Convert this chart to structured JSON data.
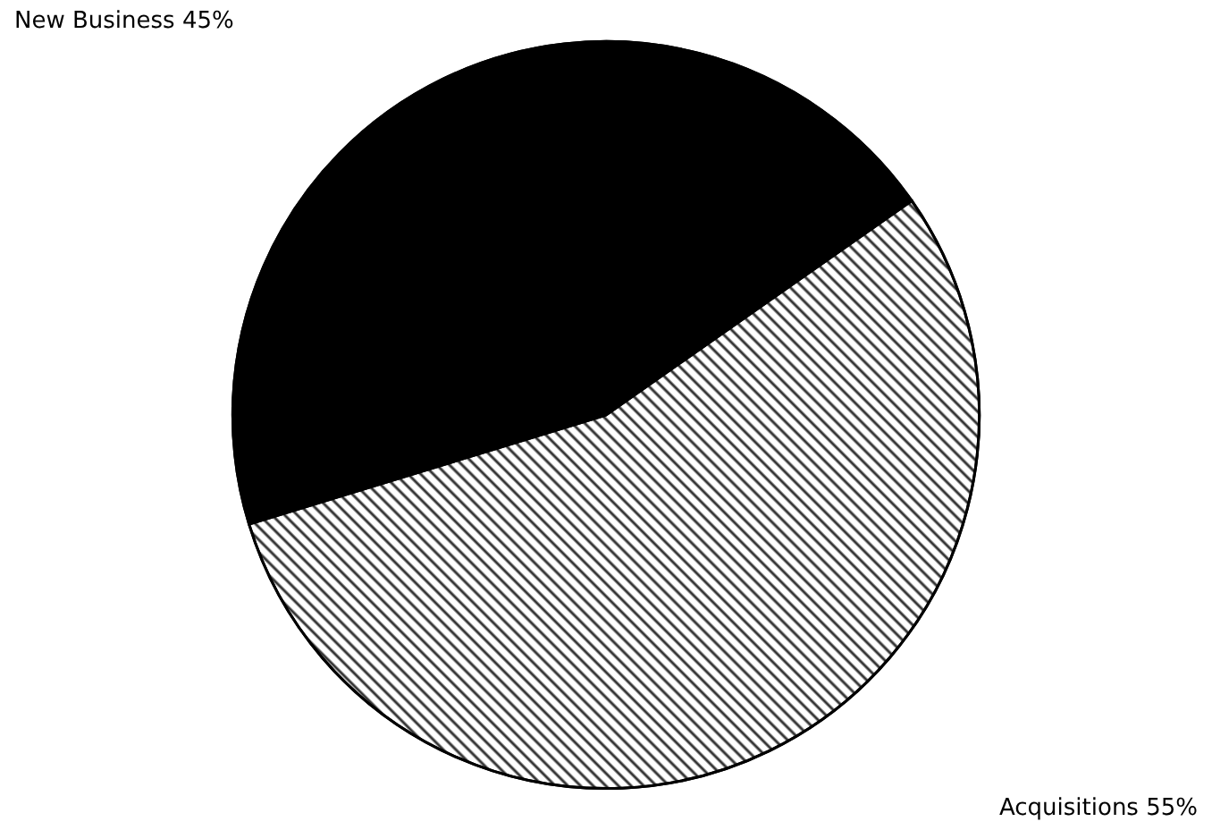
{
  "chart_data": {
    "type": "pie",
    "categories": [
      "New Business",
      "Acquisitions"
    ],
    "values": [
      45,
      55
    ],
    "colors": [
      "#000000",
      "#ffffff"
    ],
    "legend": false,
    "value_labels": [
      "45%",
      "55%"
    ]
  }
}
